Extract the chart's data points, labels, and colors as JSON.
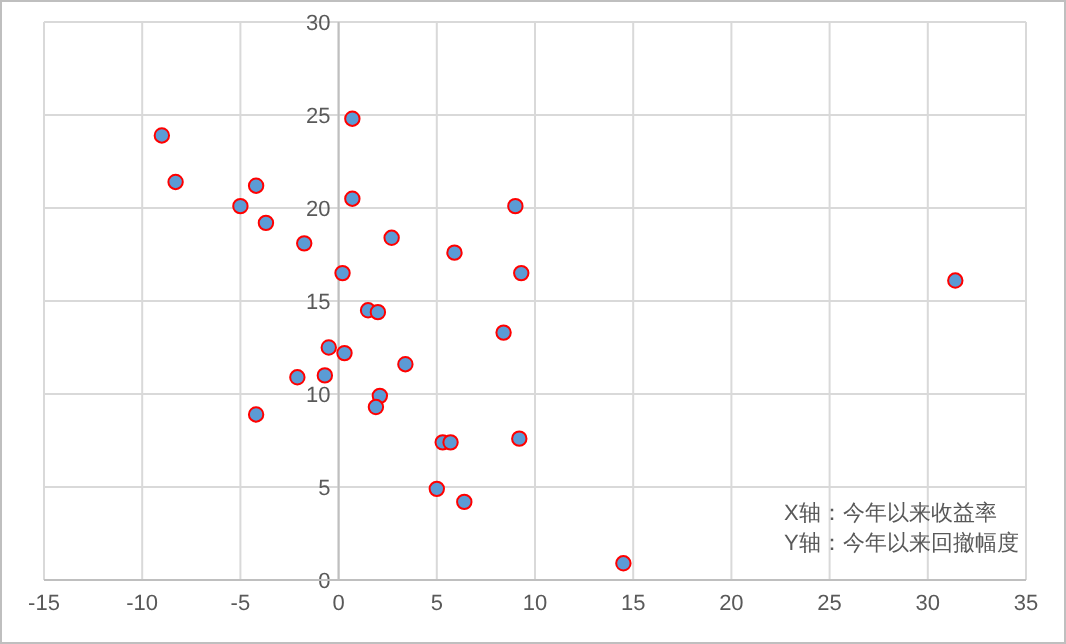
{
  "chart_data": {
    "type": "scatter",
    "x": [
      -9.0,
      -8.3,
      -5.0,
      -4.2,
      -3.7,
      -1.75,
      0.7,
      0.7,
      0.2,
      2.7,
      5.9,
      9.0,
      9.3,
      1.5,
      2.0,
      8.4,
      -0.5,
      0.3,
      3.4,
      -2.1,
      -0.7,
      2.1,
      1.9,
      -4.2,
      5.3,
      5.7,
      9.2,
      5.0,
      6.4,
      31.4,
      14.5
    ],
    "series": [
      {
        "color": "#5b9bd5",
        "values": [
          23.9,
          21.4,
          20.1,
          21.2,
          19.2,
          18.1,
          24.8,
          20.5,
          16.5,
          18.4,
          17.6,
          20.1,
          16.5,
          14.5,
          14.4,
          13.3,
          12.5,
          12.2,
          11.6,
          10.9,
          11.0,
          9.9,
          9.3,
          8.9,
          7.4,
          7.4,
          7.6,
          4.9,
          4.2,
          16.1,
          0.9
        ]
      }
    ],
    "xlim": [
      -15,
      35
    ],
    "xticks": [
      -15,
      -10,
      -5,
      0,
      5,
      10,
      15,
      20,
      25,
      30,
      35
    ],
    "ylim": [
      0,
      30
    ],
    "yticks": [
      0,
      5,
      10,
      15,
      20,
      25,
      30
    ],
    "grid": true,
    "marker": "circle",
    "annotations": [
      "X轴：今年以来收益率",
      "Y轴：今年以来回撤幅度"
    ]
  }
}
